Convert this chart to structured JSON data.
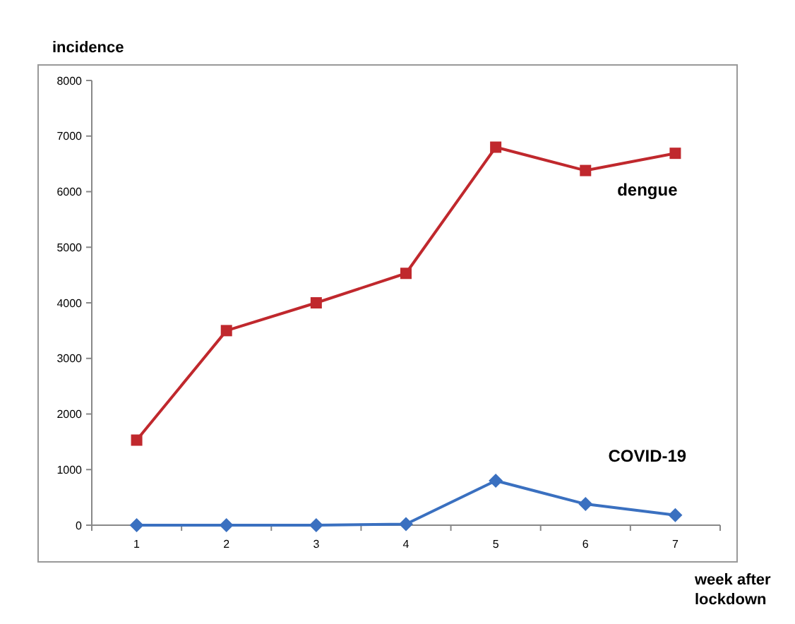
{
  "chart_data": {
    "type": "line",
    "xlabel": "week after lockdown",
    "ylabel": "incidence",
    "categories": [
      "1",
      "2",
      "3",
      "4",
      "5",
      "6",
      "7"
    ],
    "series": [
      {
        "name": "dengue",
        "color": "#c0282d",
        "marker": "square",
        "values": [
          1530,
          3500,
          4000,
          4530,
          6800,
          6380,
          6690
        ]
      },
      {
        "name": "COVID-19",
        "color": "#3a70c0",
        "marker": "diamond",
        "values": [
          0,
          0,
          0,
          20,
          800,
          380,
          180
        ]
      }
    ],
    "ylim": [
      0,
      8000
    ],
    "yticks": [
      0,
      1000,
      2000,
      3000,
      4000,
      5000,
      6000,
      7000,
      8000
    ],
    "grid": false
  }
}
